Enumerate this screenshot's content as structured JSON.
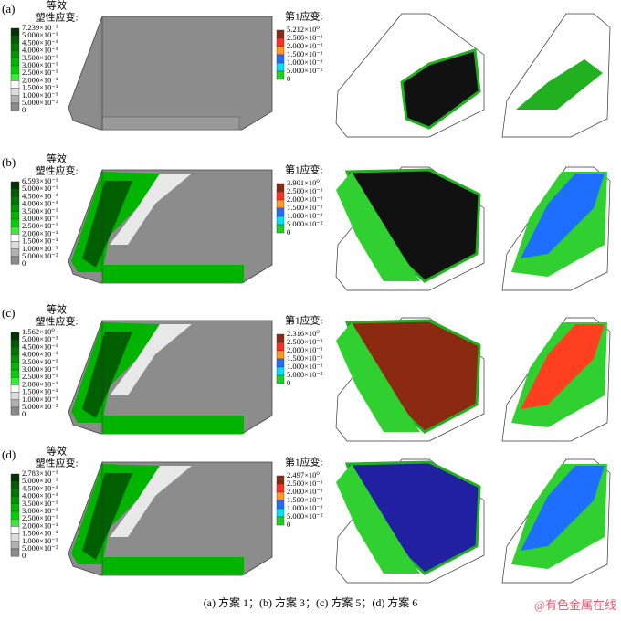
{
  "panels": [
    {
      "label": "(a)",
      "plastic_legend": {
        "title": [
          "等效",
          "塑性应变:"
        ],
        "labels": [
          "7.239×10⁻¹",
          "5.000×10⁻¹",
          "4.500×10⁻¹",
          "4.000×10⁻¹",
          "3.500×10⁻¹",
          "3.000×10⁻¹",
          "2.500×10⁻¹",
          "2.000×10⁻¹",
          "1.500×10⁻¹",
          "1.000×10⁻¹",
          "5.000×10⁻²",
          "0"
        ]
      },
      "principal_legend": {
        "title": "第1应变:",
        "labels": [
          "5.212×10⁰",
          "2.500×10⁻¹",
          "2.000×10⁻¹",
          "1.500×10⁻¹",
          "1.000×10⁻¹",
          "5.000×10⁻²",
          "0"
        ]
      }
    },
    {
      "label": "(b)",
      "plastic_legend": {
        "title": [
          "等效",
          "塑性应变:"
        ],
        "labels": [
          "6.593×10⁻¹",
          "5.000×10⁻¹",
          "4.500×10⁻¹",
          "4.000×10⁻¹",
          "3.500×10⁻¹",
          "3.000×10⁻¹",
          "2.500×10⁻¹",
          "2.000×10⁻¹",
          "1.500×10⁻¹",
          "1.000×10⁻¹",
          "5.000×10⁻²",
          "0"
        ]
      },
      "principal_legend": {
        "title": "第1应变:",
        "labels": [
          "3.901×10⁰",
          "2.500×10⁻¹",
          "2.000×10⁻¹",
          "1.500×10⁻¹",
          "1.000×10⁻¹",
          "5.000×10⁻²",
          "0"
        ]
      }
    },
    {
      "label": "(c)",
      "plastic_legend": {
        "title": [
          "等效",
          "塑性应变:"
        ],
        "labels": [
          "1.562×10⁰",
          "5.000×10⁻¹",
          "4.500×10⁻¹",
          "4.000×10⁻¹",
          "3.500×10⁻¹",
          "3.000×10⁻¹",
          "2.500×10⁻¹",
          "2.000×10⁻¹",
          "1.500×10⁻¹",
          "1.000×10⁻¹",
          "5.000×10⁻²",
          "0"
        ]
      },
      "principal_legend": {
        "title": "第1应变:",
        "labels": [
          "2.316×10⁰",
          "2.500×10⁻¹",
          "2.000×10⁻¹",
          "1.500×10⁻¹",
          "1.000×10⁻¹",
          "5.000×10⁻²",
          "0"
        ]
      }
    },
    {
      "label": "(d)",
      "plastic_legend": {
        "title": [
          "等效",
          "塑性应变:"
        ],
        "labels": [
          "2.783×10⁻¹",
          "5.000×10⁻¹",
          "4.500×10⁻¹",
          "4.000×10⁻¹",
          "3.500×10⁻¹",
          "3.000×10⁻¹",
          "2.500×10⁻¹",
          "2.000×10⁻¹",
          "1.500×10⁻¹",
          "1.000×10⁻¹",
          "5.000×10⁻²",
          "0"
        ]
      },
      "principal_legend": {
        "title": "第1应变:",
        "labels": [
          "2.497×10⁰",
          "2.500×10⁻¹",
          "2.000×10⁻¹",
          "1.500×10⁻¹",
          "1.000×10⁻¹",
          "5.000×10⁻²",
          "0"
        ]
      }
    }
  ],
  "caption": "(a) 方案 1；(b) 方案 3；(c) 方案 5；(d) 方案 6",
  "watermark": "@有色金属在线"
}
